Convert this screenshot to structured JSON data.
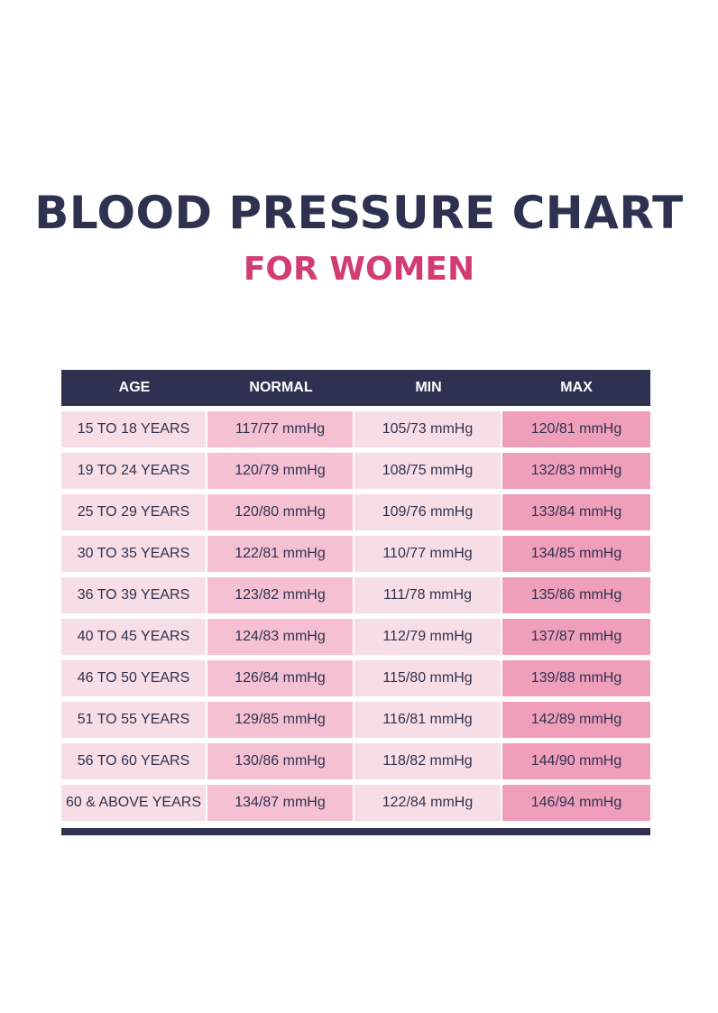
{
  "title": "BLOOD PRESSURE CHART",
  "subtitle": "FOR WOMEN",
  "colors": {
    "navy": "#2e3250",
    "accent": "#d23c73",
    "age_cell": "#f7dde5",
    "normal_cell": "#f5c0d2",
    "min_cell": "#f7dde5",
    "max_cell": "#f09fbb"
  },
  "table": {
    "headers": [
      "AGE",
      "NORMAL",
      "MIN",
      "MAX"
    ],
    "rows": [
      {
        "age": "15 TO 18 YEARS",
        "normal": "117/77 mmHg",
        "min": "105/73 mmHg",
        "max": "120/81 mmHg"
      },
      {
        "age": "19 TO 24 YEARS",
        "normal": "120/79 mmHg",
        "min": "108/75 mmHg",
        "max": "132/83 mmHg"
      },
      {
        "age": "25 TO 29 YEARS",
        "normal": "120/80 mmHg",
        "min": "109/76 mmHg",
        "max": "133/84 mmHg"
      },
      {
        "age": "30 TO 35 YEARS",
        "normal": "122/81 mmHg",
        "min": "110/77 mmHg",
        "max": "134/85 mmHg"
      },
      {
        "age": "36 TO 39 YEARS",
        "normal": "123/82 mmHg",
        "min": "111/78 mmHg",
        "max": "135/86 mmHg"
      },
      {
        "age": "40 TO 45 YEARS",
        "normal": "124/83 mmHg",
        "min": "112/79 mmHg",
        "max": "137/87 mmHg"
      },
      {
        "age": "46 TO 50 YEARS",
        "normal": "126/84 mmHg",
        "min": "115/80 mmHg",
        "max": "139/88 mmHg"
      },
      {
        "age": "51 TO 55 YEARS",
        "normal": "129/85 mmHg",
        "min": "116/81 mmHg",
        "max": "142/89 mmHg"
      },
      {
        "age": "56 TO 60 YEARS",
        "normal": "130/86 mmHg",
        "min": "118/82 mmHg",
        "max": "144/90 mmHg"
      },
      {
        "age": "60 & ABOVE YEARS",
        "normal": "134/87 mmHg",
        "min": "122/84 mmHg",
        "max": "146/94 mmHg"
      }
    ]
  }
}
